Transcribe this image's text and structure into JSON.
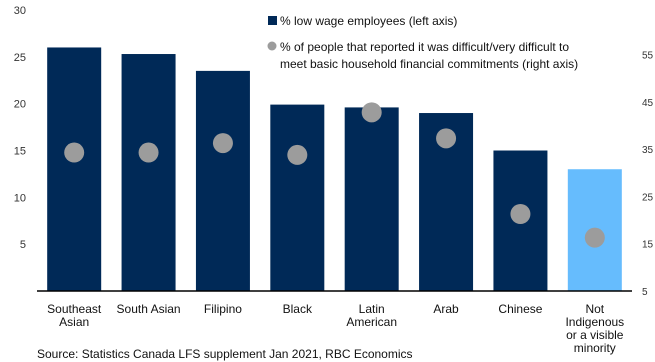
{
  "chart_data": {
    "type": "bar",
    "categories": [
      [
        "Southeast",
        "Asian"
      ],
      [
        "South Asian"
      ],
      [
        "Filipino"
      ],
      [
        "Black"
      ],
      [
        "Latin",
        "American"
      ],
      [
        "Arab"
      ],
      [
        "Chinese"
      ],
      [
        "Not",
        "Indigenous",
        "or a visible",
        "minority"
      ]
    ],
    "series": [
      {
        "name": "% low wage employees (left axis)",
        "type": "bar",
        "axis": "left",
        "values": [
          26.0,
          25.3,
          23.5,
          19.9,
          19.6,
          19.0,
          15.0,
          13.0
        ]
      },
      {
        "name": [
          "% of people that reported it was difficult/very difficult to",
          "meet basic household financial commitments (right axis)"
        ],
        "type": "scatter",
        "axis": "right",
        "values": [
          34.5,
          34.5,
          36.5,
          34.0,
          43.0,
          37.5,
          21.5,
          16.5
        ]
      }
    ],
    "left_axis": {
      "min": 0,
      "max": 30,
      "ticks": [
        "5",
        "10",
        "15",
        "20",
        "25",
        "30"
      ]
    },
    "right_axis": {
      "min": 5,
      "max": 60,
      "ticks": [
        "5",
        "15",
        "25",
        "35",
        "45",
        "55"
      ]
    },
    "legend_position": "top-right",
    "grid": false,
    "colors": {
      "bar": "#002957",
      "bar_highlight": "#66bcfd",
      "dot": "#9c9c9c",
      "axis": "#000000"
    },
    "source": "Source: Statistics Canada LFS supplement Jan 2021, RBC Economics"
  }
}
